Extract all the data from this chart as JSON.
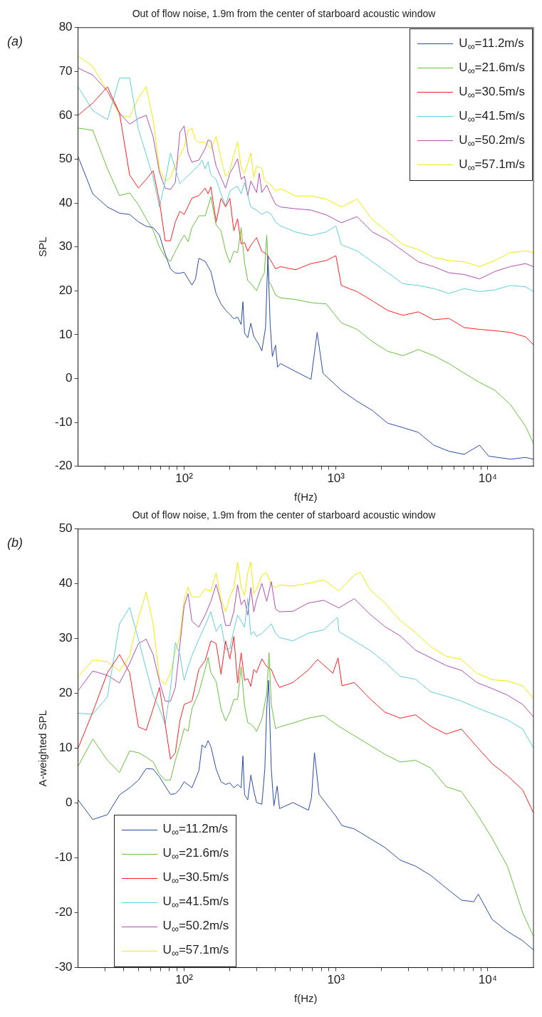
{
  "chart_data": [
    {
      "type": "line",
      "title": "Out of flow noise, 1.9m from the center of starboard acoustic window",
      "xlabel": "f(Hz)",
      "ylabel": "SPL",
      "annotations": [
        "(a)"
      ],
      "log": "x",
      "legend": "top right",
      "xlim": [
        20,
        20000
      ],
      "ylim": [
        -20,
        80
      ],
      "xticks": [
        {
          "value": 30,
          "label": null
        },
        {
          "value": 40,
          "label": null
        },
        {
          "value": 50,
          "label": null
        },
        {
          "value": 60,
          "label": null
        },
        {
          "value": 70,
          "label": null
        },
        {
          "value": 80,
          "label": null
        },
        {
          "value": 90,
          "label": null
        },
        {
          "value": 100,
          "label": "10²"
        },
        {
          "value": 200,
          "label": null
        },
        {
          "value": 300,
          "label": null
        },
        {
          "value": 400,
          "label": null
        },
        {
          "value": 500,
          "label": null
        },
        {
          "value": 600,
          "label": null
        },
        {
          "value": 700,
          "label": null
        },
        {
          "value": 800,
          "label": null
        },
        {
          "value": 900,
          "label": null
        },
        {
          "value": 1000,
          "label": "10³"
        },
        {
          "value": 2000,
          "label": null
        },
        {
          "value": 3000,
          "label": null
        },
        {
          "value": 4000,
          "label": null
        },
        {
          "value": 5000,
          "label": null
        },
        {
          "value": 6000,
          "label": null
        },
        {
          "value": 7000,
          "label": null
        },
        {
          "value": 8000,
          "label": null
        },
        {
          "value": 9000,
          "label": null
        },
        {
          "value": 10000,
          "label": "10⁴"
        }
      ],
      "yticks": [
        -20,
        -10,
        0,
        10,
        20,
        30,
        40,
        50,
        60,
        70,
        80
      ],
      "series": [
        {
          "name": "U$_{∞}$=11.2m/s",
          "color": "#2b4ba8",
          "x": [
            20,
            25,
            31.25,
            37.5,
            43.75,
            50,
            56.25,
            62.5,
            68.75,
            75,
            81.25,
            87.5,
            93.75,
            100,
            112.5,
            118.75,
            125,
            137.5,
            150,
            162.5,
            175,
            187.5,
            200,
            212.5,
            225,
            237.5,
            243.75,
            250,
            262.5,
            275,
            287.5,
            300,
            312.5,
            325,
            343.75,
            356.25,
            368.75,
            381.25,
            400,
            412.5,
            431,
            542,
            685,
            752,
            821,
            1085,
            1379,
            1739,
            2194,
            2767,
            3491,
            4403,
            5554,
            7005,
            8837,
            10140,
            14060,
            17735,
            20000
          ],
          "values": [
            50.6,
            42.1,
            39.1,
            37.7,
            37.4,
            35.7,
            34.7,
            34.4,
            32.7,
            28.4,
            25,
            24,
            24,
            24.2,
            21.3,
            22.7,
            27.4,
            26.7,
            24.4,
            19.3,
            17,
            15.6,
            14.6,
            13.6,
            14,
            12.3,
            17.5,
            10.3,
            9.3,
            12.6,
            9.6,
            8.6,
            7.6,
            6.3,
            11.6,
            28,
            12.3,
            5,
            7.6,
            2.6,
            3.4,
            1.6,
            -0.2,
            10.5,
            1.2,
            -2.7,
            -5.2,
            -7.3,
            -10.2,
            -11.2,
            -12.3,
            -15.2,
            -16.6,
            -17.3,
            -15.2,
            -17.7,
            -18.4,
            -18,
            -18.4
          ]
        },
        {
          "name": "U$_{∞}$=21.6m/s",
          "color": "#66c23a",
          "x": [
            20,
            25,
            31.25,
            37.5,
            43.75,
            50,
            56.25,
            62.5,
            68.75,
            75,
            81.25,
            87.5,
            93.75,
            100,
            106.25,
            112.5,
            125,
            137.5,
            143.75,
            150,
            162.5,
            175,
            187.5,
            200,
            212.5,
            225,
            237.5,
            250,
            262.5,
            275,
            300,
            325,
            337.5,
            350,
            362.5,
            375,
            400,
            431,
            542,
            685,
            864,
            1085,
            1379,
            1739,
            2194,
            2767,
            3491,
            4403,
            5554,
            7005,
            8837,
            11146,
            14060,
            17735,
            20000
          ],
          "values": [
            57.1,
            56.6,
            47.8,
            41.7,
            42.3,
            39.6,
            36.4,
            33.8,
            30,
            27.7,
            26.7,
            29,
            31,
            32.7,
            31.2,
            34.4,
            37.1,
            37.1,
            39.2,
            41.4,
            35,
            33.7,
            29,
            26.4,
            29,
            28.7,
            34.4,
            26.4,
            22.3,
            21.7,
            20,
            23,
            24,
            32.7,
            22,
            21.3,
            19,
            18.4,
            18,
            17.3,
            17,
            12.7,
            11.2,
            8.4,
            6.2,
            5.2,
            6.6,
            5.2,
            3.4,
            1.2,
            -0.9,
            -2.7,
            -5.9,
            -10.9,
            -14.8
          ]
        },
        {
          "name": "U$_{∞}$=30.5m/s",
          "color": "#ff2020",
          "x": [
            20,
            25,
            31.25,
            37.5,
            43.75,
            50,
            56.25,
            62.5,
            68.75,
            75,
            81.25,
            87.5,
            93.75,
            100,
            112.5,
            125,
            137.5,
            143.75,
            150,
            162.5,
            175,
            187.5,
            200,
            212.5,
            225,
            237.5,
            250,
            262.5,
            275,
            300,
            325,
            350,
            375,
            400,
            431,
            542,
            685,
            864,
            1000,
            1085,
            1379,
            1739,
            2194,
            2767,
            3491,
            4403,
            5554,
            7005,
            8837,
            11146,
            14060,
            17735,
            20000
          ],
          "values": [
            60,
            62.8,
            66.5,
            60.5,
            46.4,
            43.4,
            45.4,
            47.4,
            40.4,
            31.4,
            31.4,
            35.7,
            38.1,
            37.4,
            41.1,
            41.7,
            43.4,
            42.1,
            43.7,
            35.7,
            41.1,
            39.1,
            41.1,
            33.7,
            36.4,
            30.7,
            31,
            29,
            30.4,
            32.1,
            29,
            28.4,
            26.7,
            25,
            25.5,
            24.8,
            26.2,
            26.9,
            28,
            21.2,
            19.8,
            17.7,
            15.5,
            14.4,
            15.2,
            13.4,
            13.7,
            11.6,
            11.2,
            10.9,
            10.5,
            9.5,
            7.7
          ]
        },
        {
          "name": "U$_{∞}$=41.5m/s",
          "color": "#5fcfdc",
          "x": [
            20,
            25,
            31.25,
            37.5,
            43.75,
            50,
            56.25,
            62.5,
            68.75,
            75,
            81.25,
            87.5,
            93.75,
            100,
            112.5,
            125,
            131.25,
            137.5,
            143.75,
            150,
            162.5,
            175,
            187.5,
            200,
            212.5,
            225,
            237.5,
            250,
            275,
            300,
            325,
            350,
            375,
            400,
            431,
            542,
            685,
            864,
            1000,
            1085,
            1379,
            1739,
            2194,
            2767,
            3491,
            4403,
            5554,
            7005,
            8837,
            11146,
            14060,
            17735,
            20000
          ],
          "values": [
            66.5,
            61.1,
            59,
            68.5,
            68.5,
            56.8,
            51.1,
            45.8,
            39.1,
            45,
            51.4,
            47.8,
            44.4,
            45.4,
            47.1,
            48.6,
            49.8,
            47.8,
            49.4,
            46.4,
            45.4,
            42.1,
            39.4,
            42.7,
            43.4,
            43.8,
            42.1,
            44.7,
            39.1,
            38.4,
            37.4,
            38.1,
            37.4,
            35.7,
            34.8,
            33.4,
            32.6,
            33.4,
            34.8,
            30.5,
            29.1,
            26.6,
            24.1,
            21.6,
            21.2,
            20.5,
            19.4,
            20.5,
            19.8,
            20.2,
            21.2,
            20.9,
            19.8
          ]
        },
        {
          "name": "U$_{∞}$=50.2m/s",
          "color": "#b34fae",
          "x": [
            20,
            25,
            31.25,
            37.5,
            43.75,
            50,
            56.25,
            62.5,
            68.75,
            75,
            81.25,
            87.5,
            93.75,
            100,
            106.25,
            112.5,
            125,
            137.5,
            143.75,
            150,
            162.5,
            175,
            187.5,
            200,
            212.5,
            225,
            237.5,
            250,
            262.5,
            275,
            300,
            312.5,
            325,
            350,
            375,
            400,
            431,
            542,
            685,
            864,
            1085,
            1379,
            1739,
            2194,
            2767,
            3491,
            4403,
            5554,
            7005,
            8837,
            11146,
            14060,
            17735,
            20000
          ],
          "values": [
            70.8,
            69.2,
            65.5,
            60.5,
            58,
            59.3,
            60,
            55.1,
            47,
            43.4,
            43.1,
            44.7,
            56.1,
            57.6,
            51.4,
            49.3,
            49.8,
            52.4,
            54.4,
            54.1,
            48.4,
            45.8,
            43.4,
            46.8,
            48.4,
            50.1,
            45.4,
            46.1,
            41.7,
            45,
            42.4,
            46.8,
            42.4,
            44.1,
            41.7,
            39.7,
            39.1,
            38.7,
            38.4,
            37.3,
            35.5,
            36.9,
            33.4,
            31.6,
            29.1,
            26.6,
            25.5,
            24.1,
            23.7,
            22.7,
            24.4,
            25.5,
            26.2,
            25.5
          ]
        },
        {
          "name": "U$_{∞}$=57.1m/s",
          "color": "#f0eb00",
          "x": [
            20,
            25,
            31.25,
            37.5,
            43.75,
            50,
            56.25,
            62.5,
            68.75,
            75,
            81.25,
            87.5,
            93.75,
            100,
            106.25,
            112.5,
            118.75,
            125,
            137.5,
            150,
            162.5,
            175,
            187.5,
            200,
            212.5,
            225,
            237.5,
            250,
            275,
            287.5,
            300,
            325,
            337.5,
            350,
            375,
            400,
            431,
            542,
            685,
            864,
            1085,
            1379,
            1739,
            2194,
            2767,
            3491,
            4403,
            5554,
            7005,
            8837,
            11146,
            14060,
            17735,
            20000
          ],
          "values": [
            73.5,
            71.2,
            65.5,
            60.1,
            59.6,
            64,
            66.5,
            59,
            47.8,
            45,
            45.8,
            48.8,
            50.8,
            52.8,
            56.6,
            57,
            54.4,
            53.8,
            53.9,
            52.4,
            55.2,
            50.1,
            46.1,
            47.4,
            51.1,
            53.9,
            48,
            46.8,
            51.4,
            45.8,
            48.4,
            47.9,
            45.2,
            44.7,
            44.1,
            42.7,
            43.3,
            41.6,
            41.6,
            40.9,
            39.1,
            40.9,
            36.2,
            33.4,
            30.5,
            29.4,
            27.6,
            26.9,
            26.6,
            25.5,
            26.9,
            28.7,
            29.1,
            28.7
          ]
        }
      ]
    },
    {
      "type": "line",
      "title": "Out of flow noise, 1.9m from the center of starboard acoustic window",
      "xlabel": "f(Hz)",
      "ylabel": "A-weighted SPL",
      "annotations": [
        "(b)"
      ],
      "log": "x",
      "legend": "bottom left",
      "xlim": [
        20,
        20000
      ],
      "ylim": [
        -30,
        50
      ],
      "xticks": [
        {
          "value": 30,
          "label": null
        },
        {
          "value": 40,
          "label": null
        },
        {
          "value": 50,
          "label": null
        },
        {
          "value": 60,
          "label": null
        },
        {
          "value": 70,
          "label": null
        },
        {
          "value": 80,
          "label": null
        },
        {
          "value": 90,
          "label": null
        },
        {
          "value": 100,
          "label": "10²"
        },
        {
          "value": 200,
          "label": null
        },
        {
          "value": 300,
          "label": null
        },
        {
          "value": 400,
          "label": null
        },
        {
          "value": 500,
          "label": null
        },
        {
          "value": 600,
          "label": null
        },
        {
          "value": 700,
          "label": null
        },
        {
          "value": 800,
          "label": null
        },
        {
          "value": 900,
          "label": null
        },
        {
          "value": 1000,
          "label": "10³"
        },
        {
          "value": 2000,
          "label": null
        },
        {
          "value": 3000,
          "label": null
        },
        {
          "value": 4000,
          "label": null
        },
        {
          "value": 5000,
          "label": null
        },
        {
          "value": 6000,
          "label": null
        },
        {
          "value": 7000,
          "label": null
        },
        {
          "value": 8000,
          "label": null
        },
        {
          "value": 9000,
          "label": null
        },
        {
          "value": 10000,
          "label": "10⁴"
        }
      ],
      "yticks": [
        -30,
        -20,
        -10,
        0,
        10,
        20,
        30,
        40,
        50
      ],
      "series": [
        {
          "name": "U$_{∞}$=11.2m/s",
          "color": "#2b4ba8",
          "x": [
            20,
            25,
            31.25,
            37.5,
            43.75,
            50,
            56.25,
            62.5,
            68.75,
            75,
            81.25,
            87.5,
            93.75,
            100,
            112.5,
            125,
            131.25,
            137.5,
            143.75,
            150,
            162.5,
            175,
            187.5,
            200,
            212.5,
            225,
            237.5,
            243.75,
            250,
            262.5,
            275,
            287.5,
            300,
            325,
            340,
            350,
            360,
            375,
            390,
            410,
            425,
            521,
            659,
            690,
            722,
            774,
            1000,
            1096,
            1321,
            1667,
            2102,
            2651,
            3344,
            4219,
            5321,
            6713,
            8088,
            8660,
            10680,
            13470,
            16990,
            20000
          ],
          "values": [
            0.6,
            -3,
            -2.1,
            1.5,
            2.8,
            4.2,
            6.3,
            6.2,
            4.8,
            3.1,
            1.6,
            1.7,
            2.6,
            3.9,
            2.8,
            5.9,
            10.6,
            10.1,
            11.4,
            10.3,
            6.2,
            3.9,
            3.4,
            3.7,
            2.8,
            3.4,
            2.8,
            8.6,
            1.5,
            0.6,
            5.1,
            2.3,
            0.1,
            -0.2,
            6.2,
            17.2,
            22.4,
            6.2,
            -0.5,
            3.1,
            -1,
            0.1,
            -1.3,
            1,
            9.2,
            1.6,
            -2.4,
            -4.1,
            -4.7,
            -6.4,
            -8.1,
            -10.4,
            -11.5,
            -13.2,
            -15.5,
            -17.7,
            -18,
            -16.6,
            -21.2,
            -23.4,
            -25.1,
            -26.8
          ]
        },
        {
          "name": "U$_{∞}$=21.6m/s",
          "color": "#66c23a",
          "x": [
            20,
            25,
            31.25,
            37.5,
            43.75,
            50,
            56.25,
            62.5,
            68.75,
            75,
            81.25,
            87.5,
            93.75,
            100,
            106.25,
            112.5,
            125,
            137.5,
            143.75,
            150,
            162.5,
            175,
            187.5,
            200,
            212.5,
            225,
            237.5,
            250,
            262.5,
            275,
            287.5,
            300,
            325,
            350,
            362.5,
            375,
            400,
            425,
            521,
            659,
            831,
            1047,
            1321,
            1667,
            2102,
            2651,
            3344,
            4219,
            5321,
            6713,
            8467,
            10680,
            13470,
            16990,
            20000
          ],
          "values": [
            6.7,
            11.7,
            7.8,
            5.6,
            9.5,
            9.2,
            8.4,
            7.5,
            5.3,
            4.2,
            4.2,
            7.8,
            10.6,
            13.6,
            13.1,
            17.2,
            20.2,
            24.4,
            26.6,
            23.8,
            22.2,
            17.2,
            15,
            16.6,
            18.9,
            18.9,
            24.9,
            17.8,
            14.7,
            14.4,
            13.9,
            13.1,
            15.3,
            20,
            27.4,
            18,
            13.6,
            13.9,
            14.6,
            15.5,
            16,
            14,
            12.3,
            10.6,
            8.9,
            7.5,
            7.8,
            6.4,
            3,
            2.1,
            -1.9,
            -6.4,
            -11.5,
            -20,
            -24.3
          ]
        },
        {
          "name": "U$_{∞}$=30.5m/s",
          "color": "#ff2020",
          "x": [
            20,
            25,
            31.25,
            37.5,
            43.75,
            50,
            56.25,
            62.5,
            68.75,
            75,
            81.25,
            87.5,
            93.75,
            100,
            106.25,
            112.5,
            125,
            137.5,
            150,
            162.5,
            175,
            187.5,
            200,
            212.5,
            225,
            237.5,
            250,
            262.5,
            275,
            287.5,
            300,
            325,
            350,
            375,
            400,
            425,
            521,
            659,
            756,
            955,
            1033,
            1096,
            1321,
            1667,
            2102,
            2651,
            3344,
            4219,
            5321,
            6713,
            8467,
            10680,
            13470,
            16990,
            20000
          ],
          "values": [
            10,
            16.6,
            23.8,
            27.1,
            23.8,
            13.9,
            13.3,
            17.2,
            21.1,
            14.4,
            8,
            9.2,
            15,
            18,
            18.3,
            18.6,
            24.4,
            26,
            29.6,
            29.1,
            23.5,
            29.6,
            26.3,
            30.4,
            21.9,
            27.4,
            22.4,
            22.7,
            21.3,
            24.4,
            23.8,
            26.3,
            24.9,
            24.4,
            22.4,
            21.1,
            22,
            24.3,
            26.2,
            23.7,
            26.5,
            21.4,
            22,
            19.1,
            16.6,
            15.5,
            16.1,
            14,
            12.6,
            13.5,
            10.3,
            7.2,
            5,
            2.4,
            -1.8
          ]
        },
        {
          "name": "U$_{∞}$=41.5m/s",
          "color": "#5fcfdc",
          "x": [
            20,
            25,
            31.25,
            37.5,
            43.75,
            50,
            56.25,
            62.5,
            68.75,
            75,
            81.25,
            87.5,
            93.75,
            100,
            106.25,
            112.5,
            125,
            137.5,
            150,
            162.5,
            175,
            187.5,
            200,
            212.5,
            225,
            237.5,
            250,
            262.5,
            275,
            287.5,
            300,
            325,
            350,
            375,
            400,
            425,
            521,
            659,
            831,
            1023,
            1047,
            1321,
            1667,
            2102,
            2651,
            3344,
            4219,
            5321,
            6713,
            8467,
            10680,
            13470,
            16990,
            20000
          ],
          "values": [
            16.4,
            16.2,
            19.4,
            32.7,
            35.7,
            29.9,
            24.4,
            19.7,
            17.2,
            14.4,
            20.8,
            29.3,
            27.1,
            22.4,
            24.9,
            26.9,
            29.9,
            32.4,
            34.9,
            31.3,
            32.7,
            28,
            28.2,
            31.6,
            34.3,
            33.2,
            32.1,
            37.3,
            30.7,
            31.3,
            30.4,
            31,
            31.8,
            32.7,
            31,
            30.2,
            29.6,
            31,
            31.6,
            33.9,
            31.3,
            29.6,
            27.9,
            25.7,
            23.1,
            22.6,
            20.3,
            19.5,
            18.6,
            17.4,
            16.3,
            15.2,
            13.5,
            10.1
          ]
        },
        {
          "name": "U$_{∞}$=50.2m/s",
          "color": "#b34fae",
          "x": [
            20,
            25,
            31.25,
            37.5,
            43.75,
            50,
            56.25,
            62.5,
            68.75,
            75,
            81.25,
            87.5,
            93.75,
            100,
            106.25,
            112.5,
            125,
            137.5,
            150,
            162.5,
            175,
            187.5,
            200,
            212.5,
            225,
            237.5,
            250,
            262.5,
            275,
            287.5,
            300,
            325,
            350,
            375,
            400,
            425,
            521,
            659,
            831,
            1047,
            1321,
            1667,
            2102,
            2651,
            3344,
            4219,
            5321,
            6713,
            8467,
            10680,
            13470,
            16990,
            20000
          ],
          "values": [
            20.5,
            24.1,
            23.3,
            21.9,
            25.5,
            29.1,
            29.9,
            27.1,
            22.2,
            18.6,
            18.6,
            21.1,
            28.8,
            36,
            38.2,
            33.2,
            32.1,
            34.3,
            36.8,
            39.9,
            36.5,
            32.4,
            32.4,
            34.9,
            39.8,
            36.2,
            37.1,
            34.3,
            39.3,
            34.9,
            37.1,
            40.1,
            36.8,
            40.4,
            35.4,
            34.9,
            35,
            36.5,
            37,
            35.6,
            37.3,
            34.5,
            32.2,
            30.5,
            27.9,
            26.5,
            25.1,
            24.2,
            22,
            20.9,
            19.7,
            18,
            15.7
          ]
        },
        {
          "name": "U$_{∞}$=57.1m/s",
          "color": "#f0eb00",
          "x": [
            20,
            25,
            31.25,
            37.5,
            43.75,
            50,
            56.25,
            62.5,
            68.75,
            75,
            81.25,
            87.5,
            93.75,
            100,
            106.25,
            112.5,
            125,
            137.5,
            150,
            162.5,
            175,
            187.5,
            200,
            212.5,
            225,
            237.5,
            250,
            262.5,
            275,
            287.5,
            300,
            325,
            350,
            375,
            400,
            425,
            521,
            659,
            831,
            1047,
            1321,
            1450,
            1667,
            2102,
            2651,
            3344,
            4219,
            5321,
            6713,
            8467,
            10680,
            13470,
            16990,
            20000
          ],
          "values": [
            23,
            26.1,
            25.8,
            24.1,
            26.9,
            33.8,
            38.5,
            32.7,
            22.7,
            21.6,
            23.8,
            27.7,
            30.4,
            37.1,
            39.4,
            37.6,
            37.6,
            39,
            38.7,
            42,
            37.1,
            34.9,
            37.6,
            39.3,
            44,
            39.3,
            37.9,
            42,
            44,
            38.2,
            39,
            41.6,
            42,
            39.8,
            39.3,
            39.8,
            39.6,
            40.1,
            40.7,
            38.7,
            41.6,
            42.1,
            39,
            36.5,
            33.3,
            31.1,
            28.5,
            26.8,
            26.2,
            23.7,
            22.5,
            22.3,
            21.4,
            19.1
          ]
        }
      ]
    }
  ]
}
